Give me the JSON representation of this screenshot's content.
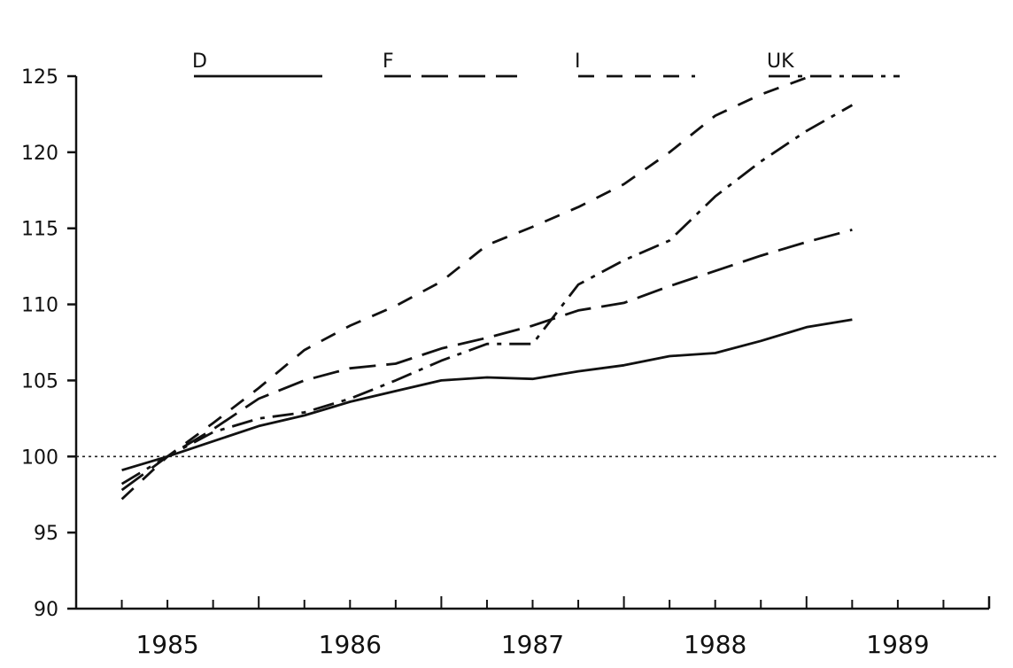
{
  "chart_data": {
    "type": "line",
    "title": "",
    "xlabel": "",
    "ylabel": "",
    "xlim": [
      1984.5,
      1989.5
    ],
    "ylim": [
      90,
      125
    ],
    "y_ticks": [
      90,
      95,
      100,
      105,
      110,
      115,
      120,
      125
    ],
    "x_tick_labels": [
      "1985",
      "1986",
      "1987",
      "1988",
      "1989"
    ],
    "grid": false,
    "legend_position": "top",
    "reference_line": {
      "y": 100,
      "style": "dotted"
    },
    "x": [
      1984.75,
      1985.0,
      1985.25,
      1985.5,
      1985.75,
      1986.0,
      1986.25,
      1986.5,
      1986.75,
      1987.0,
      1987.25,
      1987.5,
      1987.75,
      1988.0,
      1988.25,
      1988.5,
      1988.75
    ],
    "series": [
      {
        "name": "D",
        "dash": "solid",
        "values": [
          99.1,
          100.0,
          101.0,
          102.0,
          102.7,
          103.6,
          104.3,
          105.0,
          105.2,
          105.1,
          105.6,
          106.0,
          106.6,
          106.8,
          107.6,
          108.5,
          109.0
        ]
      },
      {
        "name": "F",
        "dash": "long-dash",
        "values": [
          97.8,
          100.0,
          101.8,
          103.8,
          105.0,
          105.8,
          106.1,
          107.1,
          107.8,
          108.6,
          109.6,
          110.1,
          111.2,
          112.2,
          113.2,
          114.1,
          114.9
        ]
      },
      {
        "name": "I",
        "dash": "dash",
        "values": [
          97.2,
          100.0,
          102.2,
          104.5,
          107.0,
          108.6,
          109.9,
          111.5,
          113.9,
          115.1,
          116.4,
          117.9,
          120.0,
          122.4,
          123.8,
          124.9,
          null
        ]
      },
      {
        "name": "UK",
        "dash": "dash-dot",
        "values": [
          98.2,
          100.0,
          101.6,
          102.5,
          102.9,
          103.8,
          105.0,
          106.3,
          107.4,
          107.4,
          111.3,
          112.9,
          114.2,
          117.1,
          119.4,
          121.4,
          123.1
        ]
      }
    ]
  }
}
